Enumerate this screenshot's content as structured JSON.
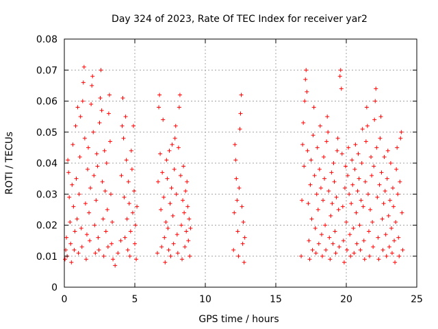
{
  "chart_data": {
    "type": "scatter",
    "title": "Day 324 of 2023, Rate Of TEC Index for receiver yar2",
    "xlabel": "GPS time / hours",
    "ylabel": "ROTI / TECUs",
    "xlim": [
      0,
      25
    ],
    "ylim": [
      0,
      0.08
    ],
    "xticks": [
      "0",
      "5",
      "10",
      "15",
      "20",
      "25"
    ],
    "yticks": [
      "0",
      "0.01",
      "0.02",
      "0.03",
      "0.04",
      "0.05",
      "0.06",
      "0.07",
      "0.08"
    ],
    "grid": true,
    "legend": "none",
    "marker": "plus",
    "color": "#ff0000",
    "series": [
      {
        "points": [
          [
            0.05,
            0.009
          ],
          [
            0.1,
            0.012
          ],
          [
            0.15,
            0.016
          ],
          [
            0.2,
            0.01
          ],
          [
            0.25,
            0.041
          ],
          [
            0.3,
            0.037
          ],
          [
            0.35,
            0.029
          ],
          [
            0.4,
            0.021
          ],
          [
            0.45,
            0.014
          ],
          [
            0.5,
            0.008
          ],
          [
            0.55,
            0.033
          ],
          [
            0.6,
            0.046
          ],
          [
            0.65,
            0.026
          ],
          [
            0.7,
            0.012
          ],
          [
            0.75,
            0.018
          ],
          [
            0.8,
            0.052
          ],
          [
            0.85,
            0.035
          ],
          [
            0.9,
            0.022
          ],
          [
            0.95,
            0.058
          ],
          [
            1.0,
            0.011
          ],
          [
            1.05,
            0.03
          ],
          [
            1.1,
            0.042
          ],
          [
            1.15,
            0.055
          ],
          [
            1.2,
            0.019
          ],
          [
            1.25,
            0.013
          ],
          [
            1.3,
            0.06
          ],
          [
            1.35,
            0.066
          ],
          [
            1.4,
            0.071
          ],
          [
            1.45,
            0.048
          ],
          [
            1.5,
            0.027
          ],
          [
            1.55,
            0.009
          ],
          [
            1.6,
            0.017
          ],
          [
            1.65,
            0.038
          ],
          [
            1.7,
            0.045
          ],
          [
            1.75,
            0.024
          ],
          [
            1.8,
            0.015
          ],
          [
            1.85,
            0.032
          ],
          [
            1.9,
            0.059
          ],
          [
            1.95,
            0.065
          ],
          [
            2.0,
            0.068
          ],
          [
            2.05,
            0.05
          ],
          [
            2.1,
            0.036
          ],
          [
            2.15,
            0.02
          ],
          [
            2.2,
            0.011
          ],
          [
            2.25,
            0.028
          ],
          [
            2.3,
            0.043
          ],
          [
            2.35,
            0.039
          ],
          [
            2.4,
            0.016
          ],
          [
            2.45,
            0.012
          ],
          [
            2.5,
            0.053
          ],
          [
            2.55,
            0.061
          ],
          [
            2.6,
            0.07
          ],
          [
            2.65,
            0.057
          ],
          [
            2.7,
            0.034
          ],
          [
            2.75,
            0.022
          ],
          [
            2.8,
            0.01
          ],
          [
            2.85,
            0.044
          ],
          [
            2.9,
            0.031
          ],
          [
            2.95,
            0.018
          ],
          [
            3.0,
            0.04
          ],
          [
            3.05,
            0.025
          ],
          [
            3.1,
            0.013
          ],
          [
            3.15,
            0.056
          ],
          [
            3.2,
            0.062
          ],
          [
            3.25,
            0.047
          ],
          [
            3.3,
            0.03
          ],
          [
            3.35,
            0.014
          ],
          [
            3.4,
            0.021
          ],
          [
            3.45,
            0.009
          ],
          [
            3.6,
            0.007
          ],
          [
            3.8,
            0.011
          ],
          [
            4.0,
            0.015
          ],
          [
            4.05,
            0.036
          ],
          [
            4.1,
            0.052
          ],
          [
            4.15,
            0.061
          ],
          [
            4.2,
            0.048
          ],
          [
            4.25,
            0.029
          ],
          [
            4.3,
            0.016
          ],
          [
            4.35,
            0.055
          ],
          [
            4.4,
            0.041
          ],
          [
            4.45,
            0.022
          ],
          [
            4.5,
            0.012
          ],
          [
            4.55,
            0.034
          ],
          [
            4.6,
            0.027
          ],
          [
            4.65,
            0.01
          ],
          [
            4.7,
            0.018
          ],
          [
            4.75,
            0.044
          ],
          [
            4.8,
            0.038
          ],
          [
            4.85,
            0.024
          ],
          [
            4.9,
            0.052
          ],
          [
            4.95,
            0.031
          ],
          [
            5.0,
            0.014
          ],
          [
            5.05,
            0.02
          ],
          [
            5.1,
            0.009
          ],
          [
            5.15,
            0.026
          ],
          [
            6.6,
            0.011
          ],
          [
            6.65,
            0.034
          ],
          [
            6.7,
            0.058
          ],
          [
            6.75,
            0.062
          ],
          [
            6.8,
            0.043
          ],
          [
            6.85,
            0.025
          ],
          [
            6.9,
            0.013
          ],
          [
            6.95,
            0.037
          ],
          [
            7.0,
            0.054
          ],
          [
            7.05,
            0.029
          ],
          [
            7.1,
            0.016
          ],
          [
            7.15,
            0.008
          ],
          [
            7.2,
            0.021
          ],
          [
            7.25,
            0.041
          ],
          [
            7.3,
            0.035
          ],
          [
            7.35,
            0.019
          ],
          [
            7.4,
            0.012
          ],
          [
            7.45,
            0.044
          ],
          [
            7.5,
            0.027
          ],
          [
            7.55,
            0.01
          ],
          [
            7.6,
            0.032
          ],
          [
            7.65,
            0.046
          ],
          [
            7.7,
            0.023
          ],
          [
            7.75,
            0.014
          ],
          [
            7.8,
            0.038
          ],
          [
            7.85,
            0.048
          ],
          [
            7.9,
            0.052
          ],
          [
            7.95,
            0.03
          ],
          [
            8.0,
            0.017
          ],
          [
            8.05,
            0.011
          ],
          [
            8.1,
            0.045
          ],
          [
            8.15,
            0.058
          ],
          [
            8.2,
            0.062
          ],
          [
            8.25,
            0.036
          ],
          [
            8.3,
            0.02
          ],
          [
            8.35,
            0.009
          ],
          [
            8.4,
            0.028
          ],
          [
            8.45,
            0.039
          ],
          [
            8.5,
            0.024
          ],
          [
            8.55,
            0.013
          ],
          [
            8.6,
            0.031
          ],
          [
            8.65,
            0.018
          ],
          [
            8.7,
            0.034
          ],
          [
            8.75,
            0.026
          ],
          [
            8.8,
            0.015
          ],
          [
            8.85,
            0.022
          ],
          [
            8.9,
            0.01
          ],
          [
            8.95,
            0.019
          ],
          [
            12.0,
            0.012
          ],
          [
            12.05,
            0.024
          ],
          [
            12.1,
            0.046
          ],
          [
            12.15,
            0.041
          ],
          [
            12.2,
            0.035
          ],
          [
            12.25,
            0.028
          ],
          [
            12.3,
            0.018
          ],
          [
            12.35,
            0.01
          ],
          [
            12.4,
            0.032
          ],
          [
            12.45,
            0.051
          ],
          [
            12.5,
            0.056
          ],
          [
            12.55,
            0.062
          ],
          [
            12.6,
            0.026
          ],
          [
            12.65,
            0.014
          ],
          [
            12.7,
            0.021
          ],
          [
            12.75,
            0.008
          ],
          [
            12.8,
            0.016
          ],
          [
            16.8,
            0.01
          ],
          [
            16.85,
            0.028
          ],
          [
            16.9,
            0.046
          ],
          [
            16.95,
            0.053
          ],
          [
            17.0,
            0.039
          ],
          [
            17.05,
            0.06
          ],
          [
            17.1,
            0.067
          ],
          [
            17.15,
            0.07
          ],
          [
            17.2,
            0.063
          ],
          [
            17.25,
            0.044
          ],
          [
            17.3,
            0.027
          ],
          [
            17.35,
            0.015
          ],
          [
            17.4,
            0.009
          ],
          [
            17.45,
            0.033
          ],
          [
            17.5,
            0.041
          ],
          [
            17.55,
            0.022
          ],
          [
            17.6,
            0.012
          ],
          [
            17.65,
            0.049
          ],
          [
            17.7,
            0.058
          ],
          [
            17.75,
            0.036
          ],
          [
            17.8,
            0.019
          ],
          [
            17.85,
            0.011
          ],
          [
            17.9,
            0.03
          ],
          [
            17.95,
            0.045
          ],
          [
            18.0,
            0.025
          ],
          [
            18.05,
            0.014
          ],
          [
            18.1,
            0.038
          ],
          [
            18.15,
            0.052
          ],
          [
            18.2,
            0.032
          ],
          [
            18.25,
            0.017
          ],
          [
            18.3,
            0.01
          ],
          [
            18.35,
            0.028
          ],
          [
            18.4,
            0.042
          ],
          [
            18.45,
            0.035
          ],
          [
            18.5,
            0.02
          ],
          [
            18.55,
            0.012
          ],
          [
            18.6,
            0.047
          ],
          [
            18.65,
            0.055
          ],
          [
            18.7,
            0.05
          ],
          [
            18.75,
            0.031
          ],
          [
            18.8,
            0.016
          ],
          [
            18.85,
            0.009
          ],
          [
            18.9,
            0.023
          ],
          [
            18.95,
            0.037
          ],
          [
            19.0,
            0.027
          ],
          [
            19.05,
            0.014
          ],
          [
            19.1,
            0.04
          ],
          [
            19.15,
            0.034
          ],
          [
            19.2,
            0.018
          ],
          [
            19.25,
            0.011
          ],
          [
            19.3,
            0.029
          ],
          [
            19.35,
            0.044
          ],
          [
            19.4,
            0.048
          ],
          [
            19.45,
            0.025
          ],
          [
            19.5,
            0.013
          ],
          [
            19.55,
            0.068
          ],
          [
            19.6,
            0.07
          ],
          [
            19.65,
            0.064
          ],
          [
            19.7,
            0.043
          ],
          [
            19.75,
            0.026
          ],
          [
            19.8,
            0.015
          ],
          [
            19.85,
            0.008
          ],
          [
            19.9,
            0.032
          ],
          [
            19.95,
            0.039
          ],
          [
            20.0,
            0.021
          ],
          [
            20.05,
            0.012
          ],
          [
            20.1,
            0.036
          ],
          [
            20.15,
            0.045
          ],
          [
            20.2,
            0.03
          ],
          [
            20.25,
            0.017
          ],
          [
            20.3,
            0.01
          ],
          [
            20.35,
            0.027
          ],
          [
            20.4,
            0.041
          ],
          [
            20.45,
            0.033
          ],
          [
            20.5,
            0.019
          ],
          [
            20.55,
            0.011
          ],
          [
            20.6,
            0.038
          ],
          [
            20.65,
            0.046
          ],
          [
            20.7,
            0.024
          ],
          [
            20.75,
            0.014
          ],
          [
            20.8,
            0.031
          ],
          [
            20.85,
            0.043
          ],
          [
            20.9,
            0.035
          ],
          [
            20.95,
            0.02
          ],
          [
            21.0,
            0.012
          ],
          [
            21.05,
            0.028
          ],
          [
            21.1,
            0.04
          ],
          [
            21.15,
            0.051
          ],
          [
            21.2,
            0.026
          ],
          [
            21.25,
            0.015
          ],
          [
            21.3,
            0.009
          ],
          [
            21.35,
            0.034
          ],
          [
            21.4,
            0.047
          ],
          [
            21.45,
            0.058
          ],
          [
            21.5,
            0.052
          ],
          [
            21.55,
            0.03
          ],
          [
            21.6,
            0.018
          ],
          [
            21.65,
            0.01
          ],
          [
            21.7,
            0.025
          ],
          [
            21.75,
            0.042
          ],
          [
            21.8,
            0.036
          ],
          [
            21.85,
            0.021
          ],
          [
            21.9,
            0.013
          ],
          [
            21.95,
            0.039
          ],
          [
            22.0,
            0.054
          ],
          [
            22.05,
            0.06
          ],
          [
            22.1,
            0.064
          ],
          [
            22.15,
            0.045
          ],
          [
            22.2,
            0.029
          ],
          [
            22.25,
            0.016
          ],
          [
            22.3,
            0.009
          ],
          [
            22.35,
            0.033
          ],
          [
            22.4,
            0.048
          ],
          [
            22.45,
            0.055
          ],
          [
            22.5,
            0.037
          ],
          [
            22.55,
            0.022
          ],
          [
            22.6,
            0.012
          ],
          [
            22.65,
            0.027
          ],
          [
            22.7,
            0.042
          ],
          [
            22.75,
            0.031
          ],
          [
            22.8,
            0.017
          ],
          [
            22.85,
            0.01
          ],
          [
            22.9,
            0.035
          ],
          [
            22.95,
            0.044
          ],
          [
            23.0,
            0.023
          ],
          [
            23.05,
            0.013
          ],
          [
            23.1,
            0.028
          ],
          [
            23.15,
            0.04
          ],
          [
            23.2,
            0.019
          ],
          [
            23.25,
            0.011
          ],
          [
            23.3,
            0.032
          ],
          [
            23.35,
            0.026
          ],
          [
            23.4,
            0.015
          ],
          [
            23.45,
            0.008
          ],
          [
            23.5,
            0.021
          ],
          [
            23.55,
            0.038
          ],
          [
            23.6,
            0.045
          ],
          [
            23.65,
            0.03
          ],
          [
            23.7,
            0.016
          ],
          [
            23.75,
            0.01
          ],
          [
            23.8,
            0.034
          ],
          [
            23.85,
            0.048
          ],
          [
            23.9,
            0.05
          ],
          [
            23.95,
            0.024
          ],
          [
            24.0,
            0.012
          ]
        ]
      }
    ]
  }
}
